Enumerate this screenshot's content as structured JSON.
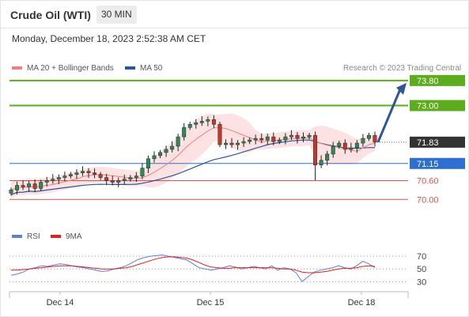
{
  "header": {
    "title": "Crude Oil (WTI)",
    "interval": "30 MIN"
  },
  "timestamp": "Monday, December 18, 2023 2:52:38 AM CET",
  "legend": {
    "ma20_label": "MA 20 + Bollinger Bands",
    "ma50_label": "MA 50",
    "research": "Research © 2023 Trading Central"
  },
  "colors": {
    "ma20": "#f08080",
    "ma50": "#2f5597",
    "bands": "#fbd5d5",
    "up_candle": "#2e8b57",
    "down_candle": "#c0392b",
    "resistance": "#5cac1e",
    "pivot": "#2f6fd0",
    "support": "#d9534f",
    "price_tag": "#333333",
    "rsi": "#5b7fd6",
    "rsi_ma": "#e02020"
  },
  "chart_data": [
    {
      "type": "candlestick",
      "title": "Crude Oil (WTI)",
      "interval": "30 MIN",
      "ylim": [
        69.3,
        74.1
      ],
      "x_labels": [
        "Dec 14",
        "Dec 15",
        "Dec 18"
      ],
      "close_series": [
        70.3,
        70.45,
        70.4,
        70.5,
        70.35,
        70.55,
        70.6,
        70.65,
        70.7,
        70.75,
        70.8,
        70.85,
        70.9,
        70.85,
        70.8,
        70.7,
        70.6,
        70.55,
        70.6,
        70.65,
        70.7,
        70.75,
        71.0,
        71.3,
        71.4,
        71.5,
        71.6,
        71.7,
        72.0,
        72.3,
        72.4,
        72.45,
        72.5,
        72.55,
        72.4,
        71.75,
        71.8,
        71.75,
        71.8,
        71.85,
        71.9,
        71.95,
        71.9,
        72.0,
        71.85,
        71.9,
        72.0,
        72.05,
        71.95,
        72.0,
        72.05,
        71.1,
        71.25,
        71.45,
        71.7,
        71.8,
        71.6,
        71.65,
        71.8,
        71.95,
        72.05,
        71.83
      ],
      "price_levels": [
        {
          "label": "73.80",
          "value": 73.8,
          "kind": "resistance"
        },
        {
          "label": "73.00",
          "value": 73.0,
          "kind": "resistance"
        },
        {
          "label": "71.83",
          "value": 71.83,
          "kind": "last"
        },
        {
          "label": "71.15",
          "value": 71.15,
          "kind": "pivot"
        },
        {
          "label": "70.60",
          "value": 70.6,
          "kind": "support"
        },
        {
          "label": "70.00",
          "value": 70.0,
          "kind": "support"
        }
      ],
      "series": [
        {
          "name": "MA 20 + Bollinger Bands"
        },
        {
          "name": "MA 50"
        }
      ]
    },
    {
      "type": "line",
      "series": [
        {
          "name": "RSI",
          "values": [
            40,
            42,
            45,
            50,
            52,
            55,
            54,
            56,
            58,
            57,
            55,
            53,
            52,
            50,
            48,
            46,
            47,
            50,
            52,
            55,
            60,
            65,
            68,
            70,
            71,
            72,
            70,
            68,
            66,
            64,
            58,
            52,
            50,
            48,
            50,
            52,
            55,
            53,
            50,
            52,
            54,
            52,
            50,
            55,
            48,
            52,
            50,
            44,
            30,
            38,
            45,
            48,
            50,
            52,
            55,
            52,
            50,
            55,
            62,
            58,
            52
          ]
        },
        {
          "name": "9MA",
          "values": [
            48,
            48,
            49,
            50,
            51,
            52,
            53,
            54,
            55,
            55,
            55,
            54,
            53,
            52,
            51,
            50,
            50,
            50,
            51,
            52,
            54,
            57,
            60,
            63,
            66,
            68,
            69,
            69,
            68,
            67,
            64,
            60,
            56,
            53,
            52,
            51,
            51,
            52,
            52,
            52,
            52,
            52,
            52,
            52,
            51,
            50,
            50,
            48,
            45,
            44,
            44,
            45,
            46,
            48,
            50,
            51,
            51,
            52,
            54,
            55,
            54
          ]
        }
      ],
      "y_ticks": [
        "70",
        "50",
        "30"
      ],
      "ylim": [
        18,
        80
      ]
    }
  ]
}
